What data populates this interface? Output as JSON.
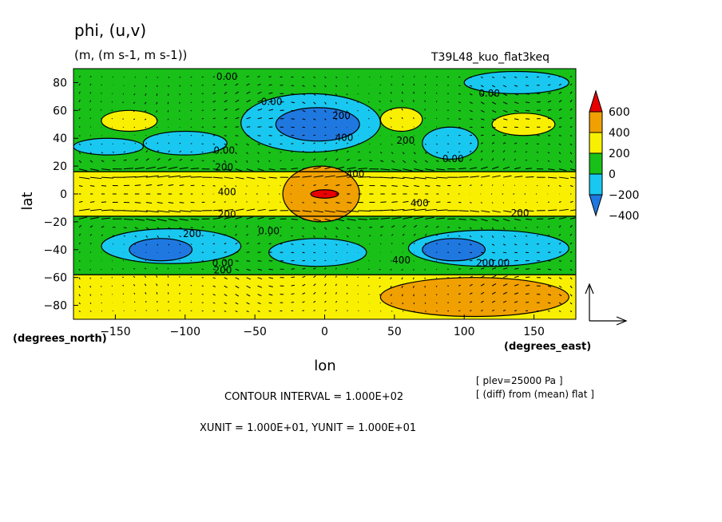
{
  "chart_data": {
    "type": "heatmap",
    "title": "phi, (u,v)",
    "units": "(m, (m s-1, m s-1))",
    "run": "T39L48_kuo_flat3keq",
    "xlabel": "lon",
    "ylabel": "lat",
    "xunit_label": "(degrees_east)",
    "yunit_label": "(degrees_north)",
    "xlim": [
      -180,
      180
    ],
    "ylim": [
      -90,
      90
    ],
    "xticks": [
      -150,
      -100,
      -50,
      0,
      50,
      100,
      150
    ],
    "yticks": [
      -80,
      -60,
      -40,
      -20,
      0,
      20,
      40,
      60,
      80
    ],
    "colorbar": {
      "labels": [
        "600",
        "400",
        "200",
        "0",
        "−200",
        "−400"
      ],
      "levels": [
        -600,
        -400,
        -200,
        0,
        200,
        400,
        600
      ],
      "colors": [
        "#1f78e0",
        "#19c8f0",
        "#18c018",
        "#f8f000",
        "#f0a000",
        "#e80000"
      ]
    },
    "contour_labels": [
      {
        "text": "0.00",
        "lon": -70,
        "lat": 82
      },
      {
        "text": "0.00",
        "lon": -38,
        "lat": 64
      },
      {
        "text": "200",
        "lon": 12,
        "lat": 54
      },
      {
        "text": "400",
        "lon": 14,
        "lat": 38
      },
      {
        "text": "0.00",
        "lon": 118,
        "lat": 70
      },
      {
        "text": "200",
        "lon": 58,
        "lat": 36
      },
      {
        "text": "0.00",
        "lon": -72,
        "lat": 29
      },
      {
        "text": "200",
        "lon": -72,
        "lat": 17
      },
      {
        "text": "0.00",
        "lon": 92,
        "lat": 23
      },
      {
        "text": "400",
        "lon": 22,
        "lat": 12
      },
      {
        "text": "400",
        "lon": -70,
        "lat": -1
      },
      {
        "text": "400",
        "lon": 68,
        "lat": -9
      },
      {
        "text": "200",
        "lon": -70,
        "lat": -17
      },
      {
        "text": "200",
        "lon": 140,
        "lat": -16
      },
      {
        "text": "0.00",
        "lon": -40,
        "lat": -29
      },
      {
        "text": "200",
        "lon": -95,
        "lat": -31
      },
      {
        "text": "0.00",
        "lon": -73,
        "lat": -52
      },
      {
        "text": "200",
        "lon": -73,
        "lat": -57
      },
      {
        "text": "400",
        "lon": 55,
        "lat": -50
      },
      {
        "text": "200",
        "lon": 115,
        "lat": -52
      },
      {
        "text": "0.00",
        "lon": 125,
        "lat": -52
      }
    ],
    "regions": [
      {
        "level": "0-200",
        "lon": [
          -180,
          180
        ],
        "lat": [
          -90,
          90
        ]
      },
      {
        "level": "200-400",
        "lon": [
          -180,
          180
        ],
        "lat": [
          -16,
          16
        ]
      },
      {
        "level": "200-400",
        "lon": [
          -180,
          180
        ],
        "lat": [
          -90,
          -58
        ]
      },
      {
        "level": "400-600",
        "lon": [
          -30,
          25
        ],
        "lat": [
          -20,
          20
        ]
      },
      {
        "level": ">600",
        "lon": [
          -10,
          10
        ],
        "lat": [
          -3,
          3
        ]
      },
      {
        "level": "400-600",
        "lon": [
          40,
          175
        ],
        "lat": [
          -88,
          -60
        ]
      },
      {
        "level": "-200-0",
        "lon": [
          -60,
          40
        ],
        "lat": [
          30,
          72
        ]
      },
      {
        "level": "<-400",
        "lon": [
          -35,
          25
        ],
        "lat": [
          38,
          62
        ]
      },
      {
        "level": "-200-0",
        "lon": [
          -160,
          -60
        ],
        "lat": [
          -50,
          -25
        ]
      },
      {
        "level": "<-400",
        "lon": [
          -140,
          -95
        ],
        "lat": [
          -48,
          -32
        ]
      },
      {
        "level": "-200-0",
        "lon": [
          60,
          175
        ],
        "lat": [
          -52,
          -26
        ]
      },
      {
        "level": "<-400",
        "lon": [
          70,
          115
        ],
        "lat": [
          -48,
          -32
        ]
      },
      {
        "level": "-200-0",
        "lon": [
          -40,
          30
        ],
        "lat": [
          -52,
          -32
        ]
      },
      {
        "level": "200-400",
        "lon": [
          -160,
          -120
        ],
        "lat": [
          45,
          60
        ]
      },
      {
        "level": "200-400",
        "lon": [
          40,
          70
        ],
        "lat": [
          45,
          62
        ]
      },
      {
        "level": "200-400",
        "lon": [
          120,
          165
        ],
        "lat": [
          42,
          58
        ]
      },
      {
        "level": "-200-0",
        "lon": [
          100,
          175
        ],
        "lat": [
          72,
          88
        ]
      },
      {
        "level": "-200-0",
        "lon": [
          70,
          110
        ],
        "lat": [
          25,
          48
        ]
      },
      {
        "level": "-200-0",
        "lon": [
          -130,
          -70
        ],
        "lat": [
          28,
          45
        ]
      },
      {
        "level": "-200-0",
        "lon": [
          -180,
          -130
        ],
        "lat": [
          28,
          40
        ]
      }
    ],
    "vector_scale": {
      "xunit": "XUNIT = 1.000E+01, YUNIT = 1.000E+01"
    }
  },
  "annotations": {
    "plev": "[ plev=25000 Pa ]",
    "diff": "[ (diff) from (mean) flat ]",
    "contour_interval": "CONTOUR INTERVAL = 1.000E+02",
    "units_line": "XUNIT = 1.000E+01, YUNIT = 1.000E+01"
  }
}
